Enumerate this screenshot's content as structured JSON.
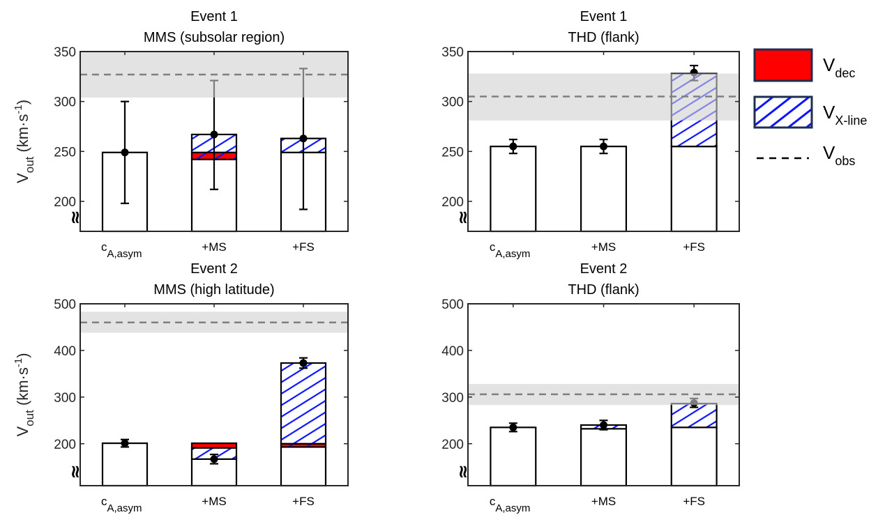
{
  "chart_data": [
    {
      "type": "bar",
      "stacked": true,
      "title": [
        "Event 1",
        "MMS (subsolar region)"
      ],
      "ylabel": "V_out (km·s^-1)",
      "ylabel_main": "V",
      "ylabel_sub": "out",
      "ylabel_unit": "(km·s",
      "ylabel_exp": "-1",
      "ylabel_close": ")",
      "ylim": [
        170,
        350
      ],
      "yticks": [
        200,
        250,
        300,
        350
      ],
      "axis_break": true,
      "categories": [
        "c_A,asym",
        "+MS",
        "+FS"
      ],
      "base": [
        249,
        242,
        249
      ],
      "V_dec": [
        0,
        7,
        0
      ],
      "V_xline": [
        0,
        18,
        14
      ],
      "points": [
        249,
        267,
        263
      ],
      "err_low": [
        198,
        212,
        192
      ],
      "err_high": [
        300,
        321,
        333
      ],
      "V_obs": 327,
      "V_obs_band": [
        304,
        350
      ]
    },
    {
      "type": "bar",
      "stacked": true,
      "title": [
        "Event 1",
        "THD (flank)"
      ],
      "ylim": [
        170,
        350
      ],
      "yticks": [
        200,
        250,
        300,
        350
      ],
      "axis_break": true,
      "categories": [
        "c_A,asym",
        "+MS",
        "+FS"
      ],
      "base": [
        255,
        255,
        255
      ],
      "V_dec": [
        0,
        0,
        0
      ],
      "V_xline": [
        0,
        0,
        73
      ],
      "points": [
        255,
        255,
        329
      ],
      "err_low": [
        248,
        248,
        321
      ],
      "err_high": [
        262,
        262,
        336
      ],
      "V_obs": 305,
      "V_obs_band": [
        281,
        328
      ]
    },
    {
      "type": "bar",
      "stacked": true,
      "title": [
        "Event 2",
        "MMS (high latitude)"
      ],
      "ylabel": "V_out (km·s^-1)",
      "ylabel_main": "V",
      "ylabel_sub": "out",
      "ylabel_unit": "(km·s",
      "ylabel_exp": "-1",
      "ylabel_close": ")",
      "ylim": [
        110,
        500
      ],
      "yticks": [
        200,
        300,
        400,
        500
      ],
      "axis_break": true,
      "categories": [
        "c_A,asym",
        "+MS",
        "+FS"
      ],
      "base": [
        201,
        167,
        193
      ],
      "V_dec": [
        0,
        10,
        7
      ],
      "V_xline": [
        0,
        24,
        173
      ],
      "points": [
        201,
        167,
        373
      ],
      "err_low": [
        193,
        157,
        362
      ],
      "err_high": [
        209,
        177,
        384
      ],
      "dec_on_top": [
        false,
        true,
        false
      ],
      "V_obs": 460,
      "V_obs_band": [
        438,
        483
      ]
    },
    {
      "type": "bar",
      "stacked": true,
      "title": [
        "Event 2",
        "THD (flank)"
      ],
      "ylim": [
        110,
        500
      ],
      "yticks": [
        200,
        300,
        400,
        500
      ],
      "axis_break": true,
      "categories": [
        "c_A,asym",
        "+MS",
        "+FS"
      ],
      "base": [
        235,
        232,
        235
      ],
      "V_dec": [
        0,
        0,
        0
      ],
      "V_xline": [
        0,
        8,
        51
      ],
      "points": [
        235,
        240,
        287
      ],
      "err_low": [
        226,
        230,
        278
      ],
      "err_high": [
        244,
        250,
        297
      ],
      "V_obs": 306,
      "V_obs_band": [
        283,
        328
      ]
    }
  ],
  "category_labels": {
    "c_main": "c",
    "c_sub": "A,asym",
    "ms": "+MS",
    "fs": "+FS"
  },
  "legend": [
    {
      "key": "V_dec",
      "main": "V",
      "sub": "dec",
      "style": "solid",
      "color": "#ff0000"
    },
    {
      "key": "V_xline",
      "main": "V",
      "sub": "X-line",
      "style": "hatch",
      "color": "#0000ff"
    },
    {
      "key": "V_obs",
      "main": "V",
      "sub": "obs",
      "style": "dashed",
      "color": "#000000"
    }
  ],
  "colors": {
    "dec": "#ff0000",
    "hatch": "#0a14ff",
    "band": "#d9d9d9",
    "obs_line": "#7f7f7f",
    "legend_border": "#1f2d4f"
  }
}
